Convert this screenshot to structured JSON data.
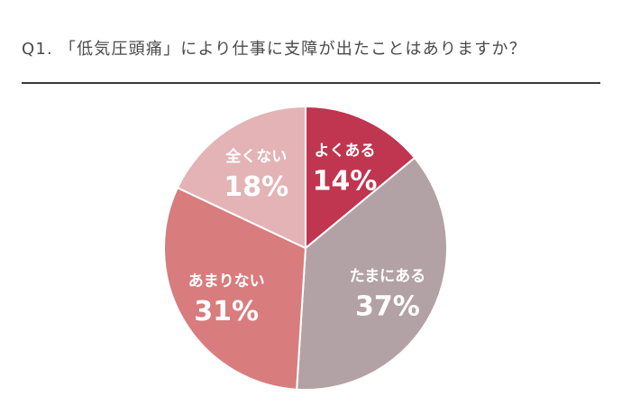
{
  "title": "Q1. 「低気圧頭痛」により仕事に支障が出たことはありますか？",
  "chart_data": {
    "type": "pie",
    "title": "Q1. 「低気圧頭痛」により仕事に支障が出たことはありますか？",
    "slices": [
      {
        "label": "よくある",
        "value": 14,
        "display": "14%",
        "color": "#c0354f"
      },
      {
        "label": "たまにある",
        "value": 37,
        "display": "37%",
        "color": "#b3a2a5"
      },
      {
        "label": "あまりない",
        "value": 31,
        "display": "31%",
        "color": "#d87c7e"
      },
      {
        "label": "全くない",
        "value": 18,
        "display": "18%",
        "color": "#e3b3b6"
      }
    ],
    "start": "12 o'clock",
    "direction": "clockwise",
    "legend": "none"
  }
}
